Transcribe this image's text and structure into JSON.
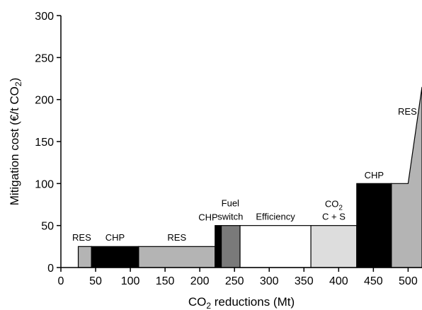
{
  "chart_data": {
    "type": "area",
    "xlabel": "CO",
    "xlabel_sub": "2",
    "xlabel_rest": " reductions (Mt)",
    "ylabel": "Mitigation cost (€/t CO",
    "ylabel_sub": "2",
    "ylabel_rest": ")",
    "xlim": [
      0,
      520
    ],
    "ylim": [
      0,
      300
    ],
    "xticks": [
      "0",
      "50",
      "100",
      "150",
      "200",
      "250",
      "300",
      "350",
      "400",
      "450",
      "500"
    ],
    "yticks": [
      "0",
      "50",
      "100",
      "150",
      "200",
      "250",
      "300"
    ],
    "blocks": [
      {
        "x0": 25,
        "x1": 44,
        "y": 25,
        "color": "#b4b4b4"
      },
      {
        "x0": 44,
        "x1": 112,
        "y": 25,
        "color": "#000000"
      },
      {
        "x0": 112,
        "x1": 222,
        "y": 25,
        "color": "#b4b4b4"
      },
      {
        "x0": 222,
        "x1": 231,
        "y": 50,
        "color": "#000000"
      },
      {
        "x0": 231,
        "x1": 258,
        "y": 50,
        "color": "#7a7a7a"
      },
      {
        "x0": 258,
        "x1": 360,
        "y": 50,
        "color": "#ffffff"
      },
      {
        "x0": 360,
        "x1": 426,
        "y": 50,
        "color": "#dddddd"
      },
      {
        "x0": 426,
        "x1": 476,
        "y": 100,
        "color": "#000000"
      },
      {
        "x0": 476,
        "x1": 520,
        "y": 100,
        "color": "#b4b4b4",
        "ramp": {
          "x_break": 500,
          "y_end": 215
        }
      }
    ],
    "labels": [
      {
        "text": "RES",
        "x": 30,
        "y": 32
      },
      {
        "text": "CHP",
        "x": 78,
        "y": 32
      },
      {
        "text": "RES",
        "x": 167,
        "y": 32
      },
      {
        "text": "CHP",
        "x": 212,
        "y": 56
      },
      {
        "text": "Fuel",
        "x": 244,
        "y": 73
      },
      {
        "text": "switch",
        "x": 244,
        "y": 57
      },
      {
        "text": "Efficiency",
        "x": 309,
        "y": 57
      },
      {
        "text": "CO",
        "sub": "2",
        "x": 393,
        "y": 72
      },
      {
        "text": "C + S",
        "x": 393,
        "y": 57
      },
      {
        "text": "CHP",
        "x": 451,
        "y": 106
      },
      {
        "text": "RES",
        "x": 499,
        "y": 182
      }
    ]
  }
}
